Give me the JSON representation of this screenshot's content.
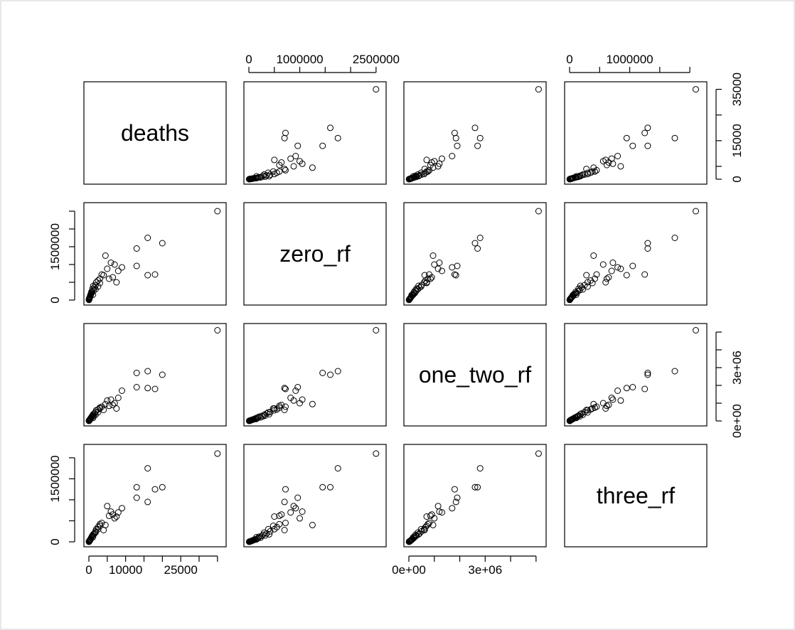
{
  "chart_data": {
    "type": "scatter-matrix",
    "variables": [
      "deaths",
      "zero_rf",
      "one_two_rf",
      "three_rf"
    ],
    "point_style": "open-circle",
    "axes": {
      "deaths": {
        "min": 0,
        "max": 36000,
        "ticks": [
          0,
          5000,
          10000,
          15000,
          20000,
          25000,
          30000,
          35000
        ],
        "tick_labels": [
          "0",
          "",
          "10000",
          "",
          "",
          "25000",
          "",
          ""
        ],
        "right_tick_labels": [
          "0",
          "",
          "15000",
          "",
          "35000"
        ],
        "right_ticks": [
          0,
          5000,
          15000,
          25000,
          35000
        ]
      },
      "zero_rf": {
        "min": 0,
        "max": 2600000,
        "ticks": [
          0,
          500000,
          1000000,
          1500000,
          2000000,
          2500000
        ],
        "top_tick_labels": [
          "0",
          "",
          "1000000",
          "",
          "",
          "2500000"
        ],
        "left_tick_labels": [
          "0",
          "",
          "",
          "1500000",
          "",
          ""
        ]
      },
      "one_two_rf": {
        "min": 0,
        "max": 5200000,
        "ticks": [
          0,
          1000000,
          2000000,
          3000000,
          4000000,
          5000000
        ],
        "bottom_tick_labels": [
          "0e+00",
          "",
          "",
          "3e+06",
          "",
          ""
        ],
        "right_tick_labels": [
          "0e+00",
          "",
          "",
          "3e+06",
          "",
          ""
        ]
      },
      "three_rf": {
        "min": 0,
        "max": 2200000,
        "ticks": [
          0,
          500000,
          1000000,
          1500000,
          2000000
        ],
        "top_tick_labels": [
          "0",
          "",
          "1000000",
          "",
          ""
        ],
        "left_tick_labels": [
          "0",
          "",
          "",
          "1500000",
          ""
        ]
      }
    },
    "observations": [
      {
        "deaths": 35000,
        "zero_rf": 2500000,
        "one_two_rf": 5100000,
        "three_rf": 2100000
      },
      {
        "deaths": 20000,
        "zero_rf": 1600000,
        "one_two_rf": 2600000,
        "three_rf": 1300000
      },
      {
        "deaths": 16000,
        "zero_rf": 1750000,
        "one_two_rf": 2800000,
        "three_rf": 1750000
      },
      {
        "deaths": 13000,
        "zero_rf": 1450000,
        "one_two_rf": 2700000,
        "three_rf": 1300000
      },
      {
        "deaths": 13000,
        "zero_rf": 960000,
        "one_two_rf": 1900000,
        "three_rf": 1050000
      },
      {
        "deaths": 16000,
        "zero_rf": 700000,
        "one_two_rf": 1850000,
        "three_rf": 950000
      },
      {
        "deaths": 18000,
        "zero_rf": 720000,
        "one_two_rf": 1800000,
        "three_rf": 1250000
      },
      {
        "deaths": 9000,
        "zero_rf": 920000,
        "one_two_rf": 1700000,
        "three_rf": 800000
      },
      {
        "deaths": 8000,
        "zero_rf": 820000,
        "one_two_rf": 1300000,
        "three_rf": 700000
      },
      {
        "deaths": 6000,
        "zero_rf": 1050000,
        "one_two_rf": 1200000,
        "three_rf": 720000
      },
      {
        "deaths": 5000,
        "zero_rf": 880000,
        "one_two_rf": 1150000,
        "three_rf": 850000
      },
      {
        "deaths": 7000,
        "zero_rf": 1000000,
        "one_two_rf": 1000000,
        "three_rf": 560000
      },
      {
        "deaths": 4500,
        "zero_rf": 1250000,
        "one_two_rf": 950000,
        "three_rf": 400000
      },
      {
        "deaths": 6500,
        "zero_rf": 640000,
        "one_two_rf": 900000,
        "three_rf": 650000
      },
      {
        "deaths": 5500,
        "zero_rf": 600000,
        "one_two_rf": 850000,
        "three_rf": 620000
      },
      {
        "deaths": 3500,
        "zero_rf": 720000,
        "one_two_rf": 800000,
        "three_rf": 450000
      },
      {
        "deaths": 3000,
        "zero_rf": 600000,
        "one_two_rf": 750000,
        "three_rf": 420000
      },
      {
        "deaths": 7500,
        "zero_rf": 500000,
        "one_two_rf": 700000,
        "three_rf": 600000
      },
      {
        "deaths": 3000,
        "zero_rf": 480000,
        "one_two_rf": 700000,
        "three_rf": 380000
      },
      {
        "deaths": 2500,
        "zero_rf": 550000,
        "one_two_rf": 650000,
        "three_rf": 350000
      },
      {
        "deaths": 2000,
        "zero_rf": 500000,
        "one_two_rf": 600000,
        "three_rf": 300000
      },
      {
        "deaths": 4000,
        "zero_rf": 700000,
        "one_two_rf": 620000,
        "three_rf": 280000
      },
      {
        "deaths": 1800,
        "zero_rf": 420000,
        "one_two_rf": 500000,
        "three_rf": 250000
      },
      {
        "deaths": 2500,
        "zero_rf": 380000,
        "one_two_rf": 480000,
        "three_rf": 300000
      },
      {
        "deaths": 1500,
        "zero_rf": 350000,
        "one_two_rf": 420000,
        "three_rf": 200000
      },
      {
        "deaths": 1200,
        "zero_rf": 400000,
        "one_two_rf": 380000,
        "three_rf": 180000
      },
      {
        "deaths": 1800,
        "zero_rf": 300000,
        "one_two_rf": 350000,
        "three_rf": 220000
      },
      {
        "deaths": 1000,
        "zero_rf": 320000,
        "one_two_rf": 300000,
        "three_rf": 150000
      },
      {
        "deaths": 900,
        "zero_rf": 250000,
        "one_two_rf": 280000,
        "three_rf": 140000
      },
      {
        "deaths": 1300,
        "zero_rf": 280000,
        "one_two_rf": 260000,
        "three_rf": 170000
      },
      {
        "deaths": 800,
        "zero_rf": 200000,
        "one_two_rf": 240000,
        "three_rf": 120000
      },
      {
        "deaths": 700,
        "zero_rf": 230000,
        "one_two_rf": 200000,
        "three_rf": 100000
      },
      {
        "deaths": 600,
        "zero_rf": 180000,
        "one_two_rf": 190000,
        "three_rf": 90000
      },
      {
        "deaths": 1100,
        "zero_rf": 150000,
        "one_two_rf": 170000,
        "three_rf": 110000
      },
      {
        "deaths": 500,
        "zero_rf": 160000,
        "one_two_rf": 150000,
        "three_rf": 70000
      },
      {
        "deaths": 450,
        "zero_rf": 120000,
        "one_two_rf": 130000,
        "three_rf": 60000
      },
      {
        "deaths": 400,
        "zero_rf": 140000,
        "one_two_rf": 110000,
        "three_rf": 55000
      },
      {
        "deaths": 350,
        "zero_rf": 100000,
        "one_two_rf": 100000,
        "three_rf": 45000
      },
      {
        "deaths": 300,
        "zero_rf": 90000,
        "one_two_rf": 90000,
        "three_rf": 40000
      },
      {
        "deaths": 250,
        "zero_rf": 80000,
        "one_two_rf": 80000,
        "three_rf": 35000
      },
      {
        "deaths": 200,
        "zero_rf": 70000,
        "one_two_rf": 70000,
        "three_rf": 30000
      },
      {
        "deaths": 180,
        "zero_rf": 60000,
        "one_two_rf": 60000,
        "three_rf": 25000
      },
      {
        "deaths": 150,
        "zero_rf": 50000,
        "one_two_rf": 50000,
        "three_rf": 20000
      },
      {
        "deaths": 120,
        "zero_rf": 40000,
        "one_two_rf": 40000,
        "three_rf": 15000
      },
      {
        "deaths": 100,
        "zero_rf": 30000,
        "one_two_rf": 30000,
        "three_rf": 12000
      },
      {
        "deaths": 80,
        "zero_rf": 25000,
        "one_two_rf": 25000,
        "three_rf": 10000
      },
      {
        "deaths": 60,
        "zero_rf": 20000,
        "one_two_rf": 20000,
        "three_rf": 8000
      },
      {
        "deaths": 40,
        "zero_rf": 15000,
        "one_two_rf": 15000,
        "three_rf": 6000
      },
      {
        "deaths": 20,
        "zero_rf": 10000,
        "one_two_rf": 10000,
        "three_rf": 4000
      },
      {
        "deaths": 10,
        "zero_rf": 5000,
        "one_two_rf": 5000,
        "three_rf": 2000
      }
    ]
  }
}
